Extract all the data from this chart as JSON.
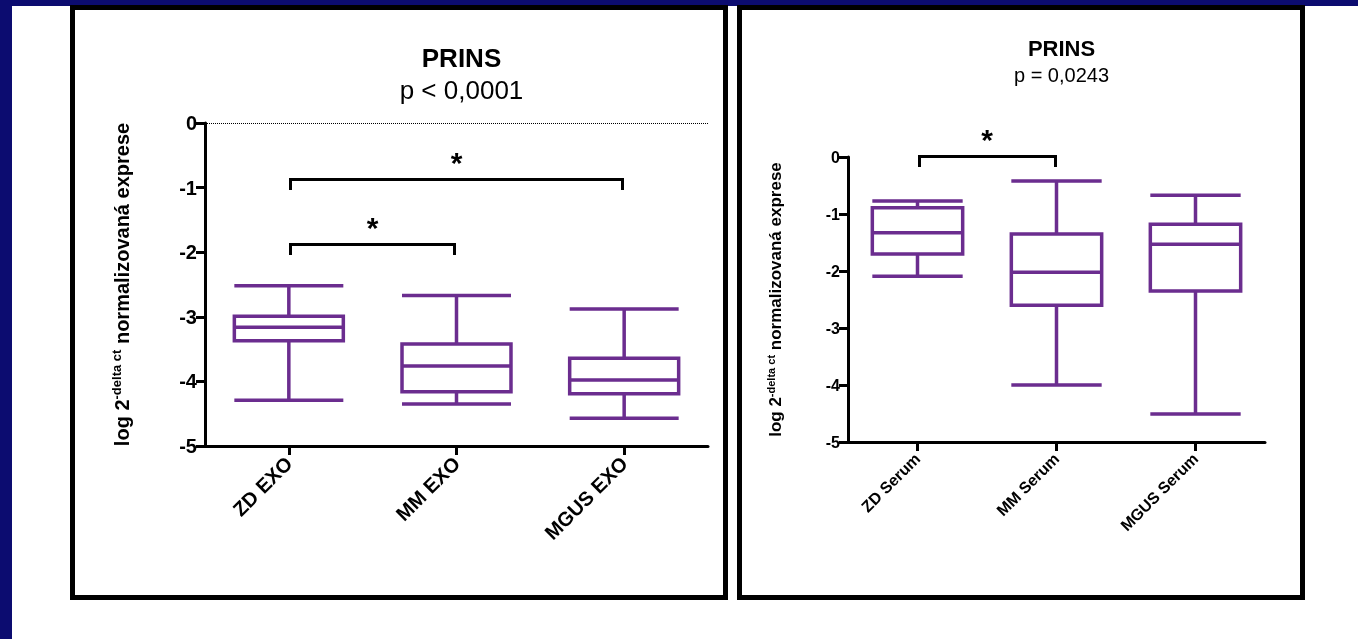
{
  "chart_data": [
    {
      "type": "box",
      "title": "PRINS",
      "subtitle": "p < 0,0001",
      "ylabel": "log 2$^{-delta ct}$ normalizovaná exprese",
      "categories": [
        "ZD EXO",
        "MM EXO",
        "MGUS EXO"
      ],
      "series": [
        {
          "color": "#6b2d8f",
          "boxes": [
            {
              "low": -4.29,
              "q1": -3.37,
              "median": -3.16,
              "q3": -2.99,
              "high": -2.52
            },
            {
              "low": -4.35,
              "q1": -4.16,
              "median": -3.76,
              "q3": -3.42,
              "high": -2.67
            },
            {
              "low": -4.57,
              "q1": -4.19,
              "median": -3.98,
              "q3": -3.64,
              "high": -2.88
            }
          ]
        }
      ],
      "ylim": [
        -5,
        0
      ],
      "yticks": [
        0,
        -1,
        -2,
        -3,
        -4,
        -5
      ],
      "ref_lines": [
        {
          "axis": "y",
          "value": 0,
          "line_style": "dotted",
          "color": "#000000"
        }
      ],
      "annotations": [
        "*",
        "*"
      ]
    },
    {
      "type": "box",
      "title": "PRINS",
      "subtitle": "p = 0,0243",
      "ylabel": "log 2$^{-delta ct}$ normalizovaná exprese",
      "categories": [
        "ZD Serum",
        "MM Serum",
        "MGUS Serum"
      ],
      "series": [
        {
          "color": "#6b2d8f",
          "boxes": [
            {
              "low": -2.09,
              "q1": -1.7,
              "median": -1.33,
              "q3": -0.89,
              "high": -0.77
            },
            {
              "low": -4.0,
              "q1": -2.6,
              "median": -2.02,
              "q3": -1.35,
              "high": -0.42
            },
            {
              "low": -4.51,
              "q1": -2.35,
              "median": -1.53,
              "q3": -1.18,
              "high": -0.67
            }
          ]
        }
      ],
      "ylim": [
        -5,
        0
      ],
      "yticks": [
        0,
        -1,
        -2,
        -3,
        -4,
        -5
      ],
      "annotations": [
        "*"
      ]
    }
  ]
}
